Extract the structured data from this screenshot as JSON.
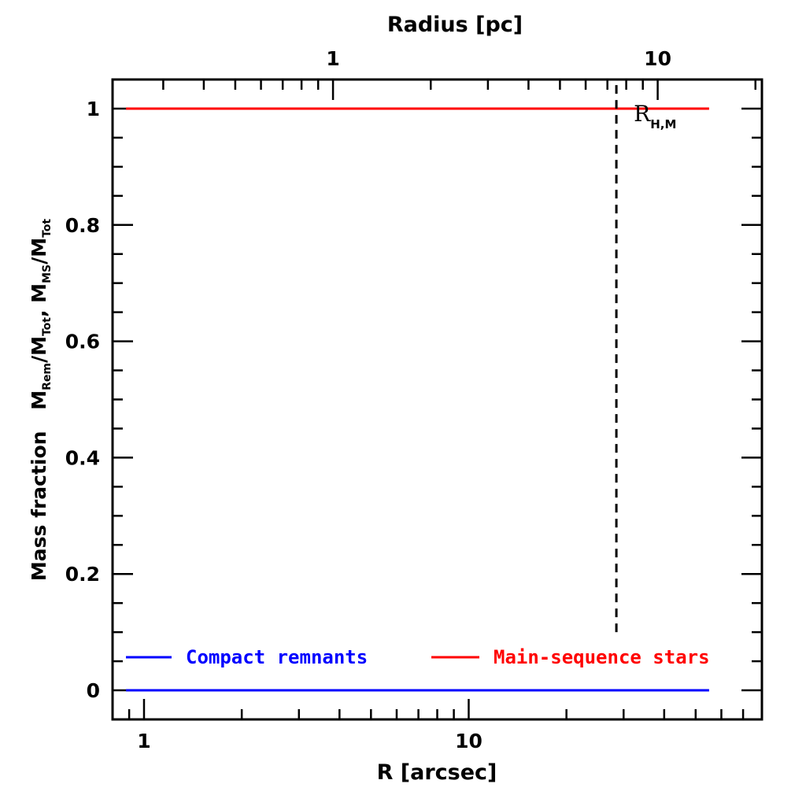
{
  "chart_data": {
    "type": "line",
    "title": "",
    "xlabel": "R [arcsec]",
    "x2label": "Radius [pc]",
    "ylabel": {
      "prefix": "Mass fraction",
      "expr1_base": "M",
      "expr1_sub": "Rem",
      "expr1_div": "/M",
      "expr1_div_sub": "Tot",
      "sep": ", ",
      "expr2_base": "M",
      "expr2_sub": "MS",
      "expr2_div": "/M",
      "expr2_div_sub": "Tot"
    },
    "xscale": "log",
    "xlim": [
      0.8,
      80
    ],
    "ylim": [
      -0.05,
      1.05
    ],
    "x_ticks": [
      {
        "value": 1,
        "label": "1"
      },
      {
        "value": 10,
        "label": "10"
      }
    ],
    "x2_ticks": [
      {
        "value": 1,
        "label": "1"
      },
      {
        "value": 10,
        "label": "10"
      }
    ],
    "y_ticks": [
      {
        "value": 0,
        "label": "0"
      },
      {
        "value": 0.2,
        "label": "0.2"
      },
      {
        "value": 0.4,
        "label": "0.4"
      },
      {
        "value": 0.6,
        "label": "0.6"
      },
      {
        "value": 0.8,
        "label": "0.8"
      },
      {
        "value": 1,
        "label": "1"
      }
    ],
    "series": [
      {
        "name": "Compact remnants",
        "color": "#0000ff",
        "x": [
          0.88,
          55
        ],
        "y": [
          0,
          0
        ]
      },
      {
        "name": "Main-sequence stars",
        "color": "#ff0000",
        "x": [
          0.88,
          55
        ],
        "y": [
          1,
          1
        ]
      }
    ],
    "vline": {
      "x": 28.5,
      "y_from": 0.1,
      "y_to": 1.05,
      "style": "dashed",
      "label_base": "R",
      "label_sub": "H,M"
    },
    "legend_placement": "bottom",
    "grid": false
  }
}
